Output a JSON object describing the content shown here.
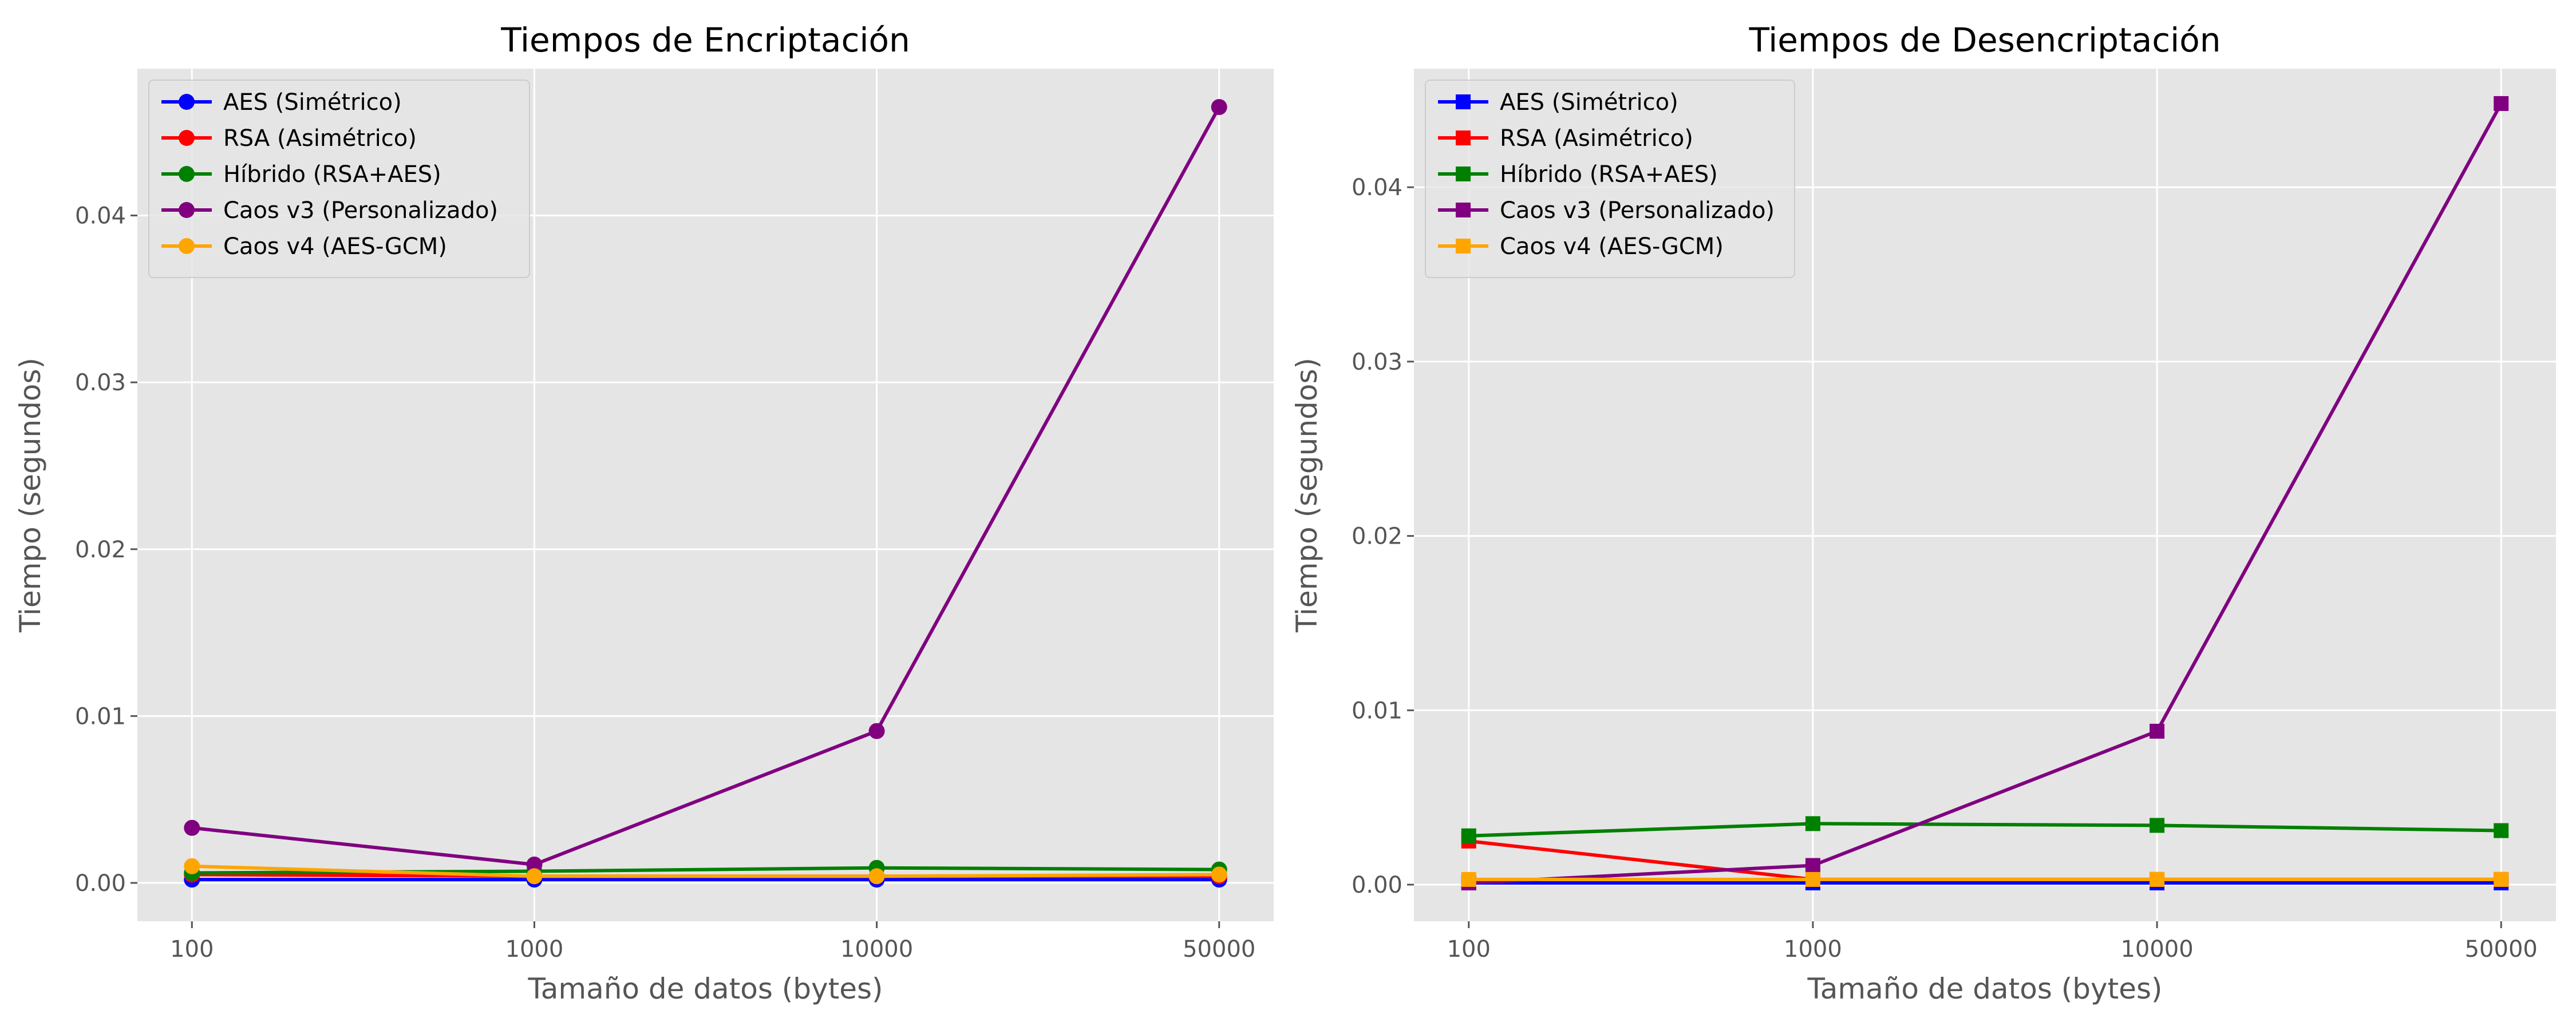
{
  "chart_data": [
    {
      "type": "line",
      "title": "Tiempos de Encriptación",
      "xlabel": "Tamaño de datos (bytes)",
      "ylabel": "Tiempo (segundos)",
      "categories": [
        "100",
        "1000",
        "10000",
        "50000"
      ],
      "ylim": [
        -0.0023,
        0.0488
      ],
      "yticks": [
        "0.00",
        "0.01",
        "0.02",
        "0.03",
        "0.04"
      ],
      "marker": "circle",
      "grid": true,
      "legend": "upper-left",
      "series": [
        {
          "name": "AES (Simétrico)",
          "color": "#0000ff",
          "values": [
            0.0002,
            0.0002,
            0.0002,
            0.0002
          ]
        },
        {
          "name": "RSA (Asimétrico)",
          "color": "#ff0000",
          "values": [
            0.0005,
            0.0004,
            0.0004,
            0.0004
          ]
        },
        {
          "name": "Híbrido (RSA+AES)",
          "color": "#008000",
          "values": [
            0.0006,
            0.0007,
            0.0009,
            0.0008
          ]
        },
        {
          "name": "Caos v3 (Personalizado)",
          "color": "#800080",
          "values": [
            0.0033,
            0.0011,
            0.0091,
            0.0465
          ]
        },
        {
          "name": "Caos v4 (AES-GCM)",
          "color": "#ffa500",
          "values": [
            0.001,
            0.0004,
            0.0004,
            0.0005
          ]
        }
      ]
    },
    {
      "type": "line",
      "title": "Tiempos de Desencriptación",
      "xlabel": "Tamaño de datos (bytes)",
      "ylabel": "Tiempo (segundos)",
      "categories": [
        "100",
        "1000",
        "10000",
        "50000"
      ],
      "ylim": [
        -0.0021,
        0.0468
      ],
      "yticks": [
        "0.00",
        "0.01",
        "0.02",
        "0.03",
        "0.04"
      ],
      "marker": "square",
      "grid": true,
      "legend": "upper-left",
      "series": [
        {
          "name": "AES (Simétrico)",
          "color": "#0000ff",
          "values": [
            0.0001,
            0.0001,
            0.0001,
            0.0001
          ]
        },
        {
          "name": "RSA (Asimétrico)",
          "color": "#ff0000",
          "values": [
            0.0025,
            0.0003,
            0.0003,
            0.0003
          ]
        },
        {
          "name": "Híbrido (RSA+AES)",
          "color": "#008000",
          "values": [
            0.0028,
            0.0035,
            0.0034,
            0.0031
          ]
        },
        {
          "name": "Caos v3 (Personalizado)",
          "color": "#800080",
          "values": [
            0.0001,
            0.0011,
            0.0088,
            0.0448
          ]
        },
        {
          "name": "Caos v4 (AES-GCM)",
          "color": "#ffa500",
          "values": [
            0.0003,
            0.0003,
            0.0003,
            0.0003
          ]
        }
      ]
    }
  ]
}
